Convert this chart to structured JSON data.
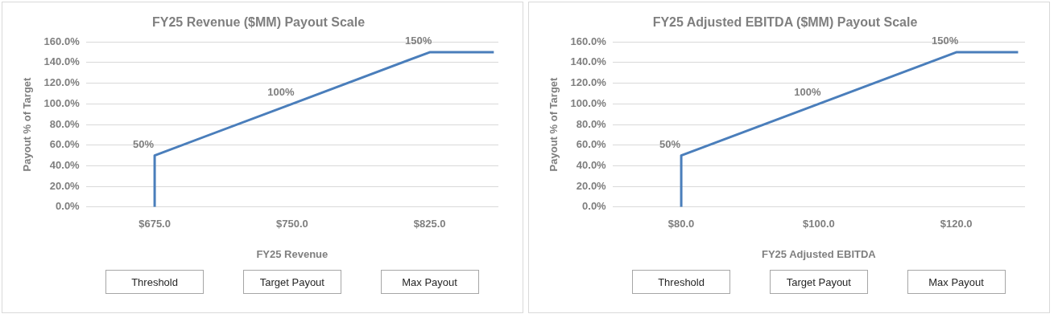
{
  "chart_data": [
    {
      "type": "line",
      "title": "FY25 Revenue ($MM) Payout Scale",
      "xlabel": "FY25 Revenue",
      "ylabel": "Payout % of Target",
      "x": [
        675,
        675,
        750,
        825,
        860
      ],
      "series": [
        {
          "color": "#4a7ebb",
          "values": [
            0,
            50,
            100,
            150,
            150
          ],
          "value_labels": [
            null,
            "50%",
            "100%",
            "150%",
            null
          ]
        }
      ],
      "xlim": [
        637.5,
        862.5
      ],
      "xticks": [
        {
          "value": 675,
          "label": "$675.0"
        },
        {
          "value": 750,
          "label": "$750.0"
        },
        {
          "value": 825,
          "label": "$825.0"
        }
      ],
      "ylim": [
        0,
        160
      ],
      "yticks": [
        {
          "value": 0,
          "label": "0.0%"
        },
        {
          "value": 20,
          "label": "20.0%"
        },
        {
          "value": 40,
          "label": "40.0%"
        },
        {
          "value": 60,
          "label": "60.0%"
        },
        {
          "value": 80,
          "label": "80.0%"
        },
        {
          "value": 100,
          "label": "100.0%"
        },
        {
          "value": 120,
          "label": "120.0%"
        },
        {
          "value": 140,
          "label": "140.0%"
        },
        {
          "value": 160,
          "label": "160.0%"
        }
      ],
      "grid": "y",
      "legend": false,
      "marker": "none",
      "line_style": "solid",
      "annotations": [
        "Threshold",
        "Target Payout",
        "Max Payout"
      ]
    },
    {
      "type": "line",
      "title": "FY25 Adjusted EBITDA ($MM) Payout Scale",
      "xlabel": "FY25 Adjusted EBITDA",
      "ylabel": "Payout % of Target",
      "x": [
        80,
        80,
        100,
        120,
        129
      ],
      "series": [
        {
          "color": "#4a7ebb",
          "values": [
            0,
            50,
            100,
            150,
            150
          ],
          "value_labels": [
            null,
            "50%",
            "100%",
            "150%",
            null
          ]
        }
      ],
      "xlim": [
        70,
        130
      ],
      "xticks": [
        {
          "value": 80,
          "label": "$80.0"
        },
        {
          "value": 100,
          "label": "$100.0"
        },
        {
          "value": 120,
          "label": "$120.0"
        }
      ],
      "ylim": [
        0,
        160
      ],
      "yticks": [
        {
          "value": 0,
          "label": "0.0%"
        },
        {
          "value": 20,
          "label": "20.0%"
        },
        {
          "value": 40,
          "label": "40.0%"
        },
        {
          "value": 60,
          "label": "60.0%"
        },
        {
          "value": 80,
          "label": "80.0%"
        },
        {
          "value": 100,
          "label": "100.0%"
        },
        {
          "value": 120,
          "label": "120.0%"
        },
        {
          "value": 140,
          "label": "140.0%"
        },
        {
          "value": 160,
          "label": "160.0%"
        }
      ],
      "grid": "y",
      "legend": false,
      "marker": "none",
      "line_style": "solid",
      "annotations": [
        "Threshold",
        "Target Payout",
        "Max Payout"
      ]
    }
  ]
}
